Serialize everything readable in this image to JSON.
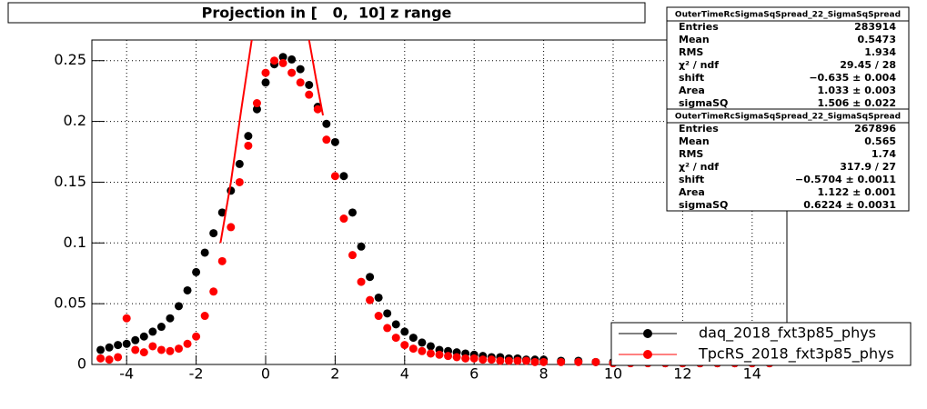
{
  "chart_data": {
    "type": "scatter",
    "title": "Projection in [   0,  10] z range",
    "xlim": [
      -5,
      15
    ],
    "xticks": [
      -4,
      -2,
      0,
      2,
      4,
      6,
      8,
      10,
      12,
      14
    ],
    "ylim": [
      0,
      0.267
    ],
    "yticks": [
      0,
      0.05,
      0.1,
      0.15,
      0.2,
      0.25
    ],
    "grid": true,
    "legend": "bottom-right",
    "series": [
      {
        "name": "daq_2018_fxt3p85_phys",
        "color": "#000000",
        "x": [
          -4.75,
          -4.5,
          -4.25,
          -4,
          -3.75,
          -3.5,
          -3.25,
          -3,
          -2.75,
          -2.5,
          -2.25,
          -2,
          -1.75,
          -1.5,
          -1.25,
          -1,
          -0.75,
          -0.5,
          -0.25,
          0,
          0.25,
          0.5,
          0.75,
          1,
          1.25,
          1.5,
          1.75,
          2,
          2.25,
          2.5,
          2.75,
          3,
          3.25,
          3.5,
          3.75,
          4,
          4.25,
          4.5,
          4.75,
          5,
          5.25,
          5.5,
          5.75,
          6,
          6.25,
          6.5,
          6.75,
          7,
          7.25,
          7.5,
          7.75,
          8,
          8.5,
          9,
          9.5,
          10,
          10.5,
          11,
          11.5,
          12,
          12.5,
          13,
          13.5,
          14,
          14.5
        ],
        "values": [
          0.012,
          0.014,
          0.016,
          0.017,
          0.02,
          0.023,
          0.027,
          0.031,
          0.038,
          0.048,
          0.061,
          0.076,
          0.092,
          0.108,
          0.125,
          0.143,
          0.165,
          0.188,
          0.21,
          0.232,
          0.247,
          0.253,
          0.251,
          0.243,
          0.23,
          0.212,
          0.198,
          0.183,
          0.155,
          0.125,
          0.097,
          0.072,
          0.055,
          0.042,
          0.033,
          0.027,
          0.022,
          0.018,
          0.015,
          0.012,
          0.011,
          0.01,
          0.009,
          0.008,
          0.007,
          0.006,
          0.006,
          0.005,
          0.005,
          0.004,
          0.004,
          0.004,
          0.003,
          0.003,
          0.002,
          0.002,
          0.002,
          0.002,
          0.001,
          0.001,
          0.001,
          0.001,
          0.001,
          0.001,
          0.001
        ]
      },
      {
        "name": "TpcRS_2018_fxt3p85_phys",
        "color": "#ff0000",
        "x": [
          -4.75,
          -4.5,
          -4.25,
          -4,
          -3.75,
          -3.5,
          -3.25,
          -3,
          -2.75,
          -2.5,
          -2.25,
          -2,
          -1.75,
          -1.5,
          -1.25,
          -1,
          -0.75,
          -0.5,
          -0.25,
          0,
          0.25,
          0.5,
          0.75,
          1,
          1.25,
          1.5,
          1.75,
          2,
          2.25,
          2.5,
          2.75,
          3,
          3.25,
          3.5,
          3.75,
          4,
          4.25,
          4.5,
          4.75,
          5,
          5.25,
          5.5,
          5.75,
          6,
          6.25,
          6.5,
          6.75,
          7,
          7.25,
          7.5,
          7.75,
          8,
          8.5,
          9,
          9.5,
          10,
          10.5,
          11,
          11.5,
          12,
          12.5,
          13,
          13.5,
          14,
          14.5
        ],
        "values": [
          0.005,
          0.004,
          0.006,
          0.038,
          0.012,
          0.01,
          0.015,
          0.012,
          0.011,
          0.013,
          0.017,
          0.023,
          0.04,
          0.06,
          0.085,
          0.113,
          0.15,
          0.18,
          0.215,
          0.24,
          0.25,
          0.248,
          0.24,
          0.232,
          0.222,
          0.21,
          0.185,
          0.155,
          0.12,
          0.09,
          0.068,
          0.053,
          0.04,
          0.03,
          0.022,
          0.016,
          0.013,
          0.011,
          0.009,
          0.008,
          0.007,
          0.006,
          0.005,
          0.005,
          0.004,
          0.004,
          0.003,
          0.003,
          0.003,
          0.003,
          0.002,
          0.002,
          0.002,
          0.002,
          0.002,
          0.001,
          0.001,
          0.001,
          0.001,
          0.001,
          0.001,
          0.001,
          0.001,
          0.001,
          0.001
        ]
      }
    ],
    "fit": {
      "color": "#ff0000",
      "x": [
        -1.3,
        -1.0,
        -0.7,
        -0.4,
        null,
        1.25,
        1.45,
        1.65
      ],
      "values": [
        0.1,
        0.15,
        0.21,
        0.267,
        null,
        0.267,
        0.235,
        0.205
      ]
    },
    "stats": [
      {
        "title": "OuterTimeRcSigmaSqSpread_22_SigmaSqSpread",
        "rows": [
          [
            "Entries",
            "283914"
          ],
          [
            "Mean",
            "0.5473"
          ],
          [
            "RMS",
            "1.934"
          ],
          [
            "χ² / ndf",
            "29.45 / 28"
          ],
          [
            "shift",
            "−0.635 ± 0.004"
          ],
          [
            "Area",
            "1.033 ± 0.003"
          ],
          [
            "sigmaSQ",
            "1.506 ± 0.022"
          ]
        ]
      },
      {
        "title": "OuterTimeRcSigmaSqSpread_22_SigmaSqSpread",
        "rows": [
          [
            "Entries",
            "267896"
          ],
          [
            "Mean",
            "0.565"
          ],
          [
            "RMS",
            "1.74"
          ],
          [
            "χ² / ndf",
            "317.9 / 27"
          ],
          [
            "shift",
            "−0.5704 ± 0.0011"
          ],
          [
            "Area",
            "1.122 ± 0.001"
          ],
          [
            "sigmaSQ",
            "0.6224 ± 0.0031"
          ]
        ]
      }
    ]
  }
}
